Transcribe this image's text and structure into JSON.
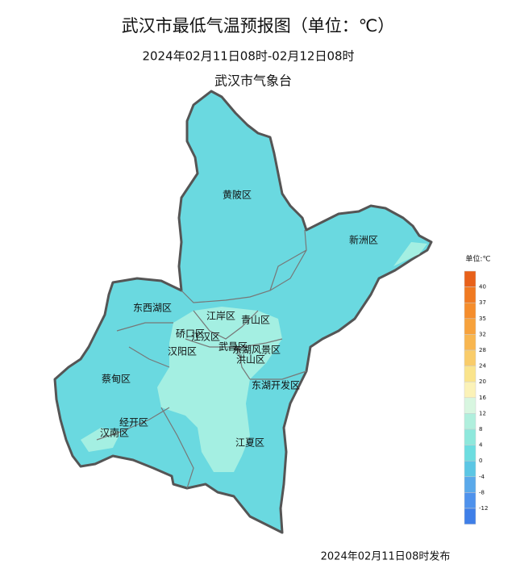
{
  "header": {
    "title": "武汉市最低气温预报图（单位：℃）",
    "period": "2024年02月11日08时-02月12日08时",
    "agency": "武汉市气象台"
  },
  "districts": [
    "黄陂区",
    "新洲区",
    "东西湖区",
    "江岸区",
    "青山区",
    "硚口区",
    "江汉区",
    "汉阳区",
    "武昌区",
    "东湖风景区",
    "洪山区",
    "蔡甸区",
    "东湖开发区",
    "经开区",
    "汉南区",
    "江夏区"
  ],
  "legend": {
    "title": "单位:℃",
    "labels": [
      40,
      37,
      35,
      32,
      28,
      24,
      20,
      16,
      12,
      8,
      4,
      0,
      -4,
      -8,
      -12
    ],
    "colors": [
      "#e8611a",
      "#f07a22",
      "#f58d2c",
      "#f7a23c",
      "#f8b650",
      "#f9cc6a",
      "#fae48c",
      "#fbf2b8",
      "#d8f6e0",
      "#b0efdd",
      "#8ee8dc",
      "#6ddde0",
      "#5cc6e4",
      "#5aa9ea",
      "#4f92ec",
      "#3f7fe8"
    ]
  },
  "footer": {
    "issued": "2024年02月11日08时发布"
  }
}
